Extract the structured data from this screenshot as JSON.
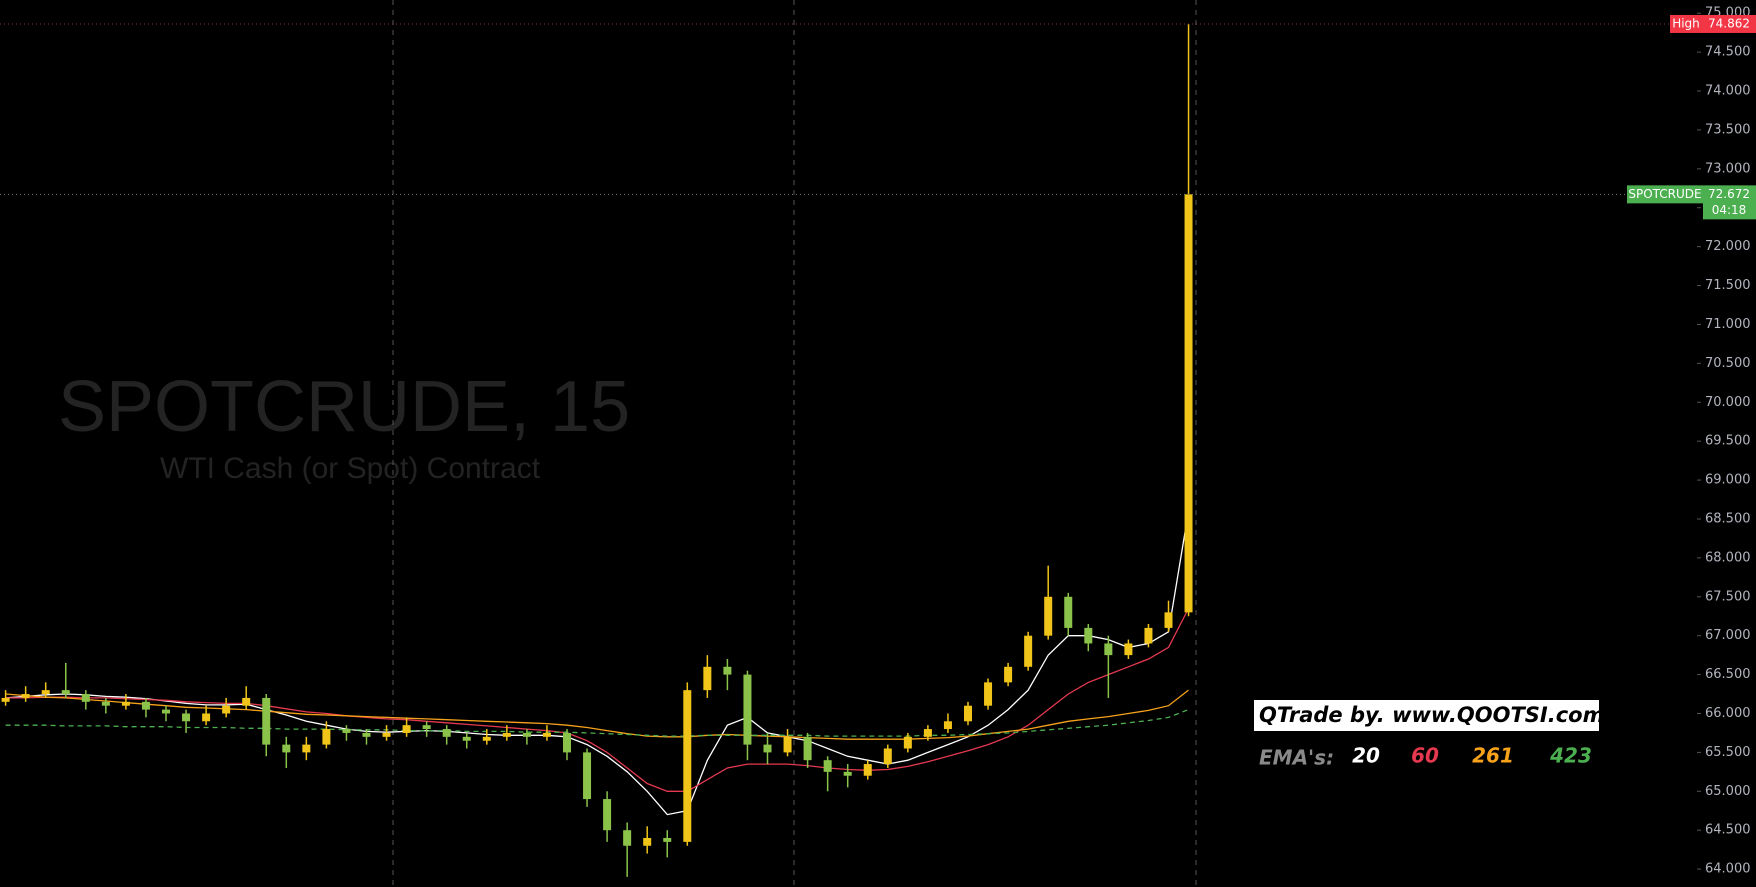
{
  "chart_data": {
    "type": "candlestick",
    "title": "SPOTCRUDE, 15",
    "subtitle": "WTI Cash (or Spot) Contract",
    "credit": "QTrade by. www.QOOTSI.com",
    "legend_label": "EMA's:",
    "up_color": "#f0c419",
    "down_color": "#8bc34a",
    "ylim": [
      63.77,
      75.17
    ],
    "yticks": [
      {
        "value": 64,
        "label": "64.000"
      },
      {
        "value": 64.5,
        "label": "64.500"
      },
      {
        "value": 65,
        "label": "65.000"
      },
      {
        "value": 65.5,
        "label": "65.500"
      },
      {
        "value": 66,
        "label": "66.000"
      },
      {
        "value": 66.5,
        "label": "66.500"
      },
      {
        "value": 67,
        "label": "67.000"
      },
      {
        "value": 67.5,
        "label": "67.500"
      },
      {
        "value": 68,
        "label": "68.000"
      },
      {
        "value": 68.5,
        "label": "68.500"
      },
      {
        "value": 69,
        "label": "69.000"
      },
      {
        "value": 69.5,
        "label": "69.500"
      },
      {
        "value": 70,
        "label": "70.000"
      },
      {
        "value": 70.5,
        "label": "70.500"
      },
      {
        "value": 71,
        "label": "71.000"
      },
      {
        "value": 71.5,
        "label": "71.500"
      },
      {
        "value": 72,
        "label": "72.000"
      },
      {
        "value": 72.5,
        "label": "72.500"
      },
      {
        "value": 73,
        "label": "73.000"
      },
      {
        "value": 73.5,
        "label": "73.500"
      },
      {
        "value": 74,
        "label": "74.000"
      },
      {
        "value": 74.5,
        "label": "74.500"
      },
      {
        "value": 75,
        "label": "75.000"
      }
    ],
    "high_marker": {
      "label": "High",
      "value": 74.862,
      "color": "#f23645"
    },
    "last_price": {
      "label": "SPOTCRUDE",
      "value": 72.672,
      "countdown": "04:18",
      "color": "#4caf50"
    },
    "candles": [
      [
        66.15,
        66.3,
        66.1,
        66.2
      ],
      [
        66.2,
        66.35,
        66.15,
        66.25
      ],
      [
        66.25,
        66.4,
        66.2,
        66.3
      ],
      [
        66.3,
        66.65,
        66.2,
        66.25
      ],
      [
        66.25,
        66.3,
        66.05,
        66.15
      ],
      [
        66.15,
        66.2,
        66.0,
        66.1
      ],
      [
        66.1,
        66.25,
        66.05,
        66.15
      ],
      [
        66.15,
        66.2,
        65.95,
        66.05
      ],
      [
        66.05,
        66.1,
        65.9,
        66.0
      ],
      [
        66.0,
        66.05,
        65.75,
        65.9
      ],
      [
        65.9,
        66.1,
        65.85,
        66.0
      ],
      [
        66.0,
        66.2,
        65.95,
        66.1
      ],
      [
        66.1,
        66.35,
        66.05,
        66.2
      ],
      [
        66.2,
        66.25,
        65.45,
        65.6
      ],
      [
        65.6,
        65.7,
        65.3,
        65.5
      ],
      [
        65.5,
        65.7,
        65.4,
        65.6
      ],
      [
        65.6,
        65.9,
        65.55,
        65.8
      ],
      [
        65.8,
        65.85,
        65.65,
        65.75
      ],
      [
        65.75,
        65.8,
        65.6,
        65.7
      ],
      [
        65.7,
        65.85,
        65.65,
        65.75
      ],
      [
        65.75,
        65.95,
        65.7,
        65.85
      ],
      [
        65.85,
        65.9,
        65.7,
        65.8
      ],
      [
        65.8,
        65.85,
        65.6,
        65.7
      ],
      [
        65.7,
        65.75,
        65.55,
        65.65
      ],
      [
        65.65,
        65.8,
        65.6,
        65.7
      ],
      [
        65.7,
        65.85,
        65.65,
        65.75
      ],
      [
        65.75,
        65.8,
        65.6,
        65.7
      ],
      [
        65.7,
        65.85,
        65.65,
        65.75
      ],
      [
        65.75,
        65.8,
        65.4,
        65.5
      ],
      [
        65.5,
        65.55,
        64.8,
        64.9
      ],
      [
        64.9,
        65.0,
        64.35,
        64.5
      ],
      [
        64.5,
        64.6,
        63.9,
        64.3
      ],
      [
        64.3,
        64.55,
        64.2,
        64.4
      ],
      [
        64.4,
        64.5,
        64.15,
        64.35
      ],
      [
        64.35,
        66.4,
        64.3,
        66.3
      ],
      [
        66.3,
        66.75,
        66.2,
        66.6
      ],
      [
        66.6,
        66.7,
        66.3,
        66.5
      ],
      [
        66.5,
        66.55,
        65.4,
        65.6
      ],
      [
        65.6,
        65.75,
        65.35,
        65.5
      ],
      [
        65.5,
        65.8,
        65.45,
        65.7
      ],
      [
        65.7,
        65.75,
        65.3,
        65.4
      ],
      [
        65.4,
        65.45,
        65.0,
        65.25
      ],
      [
        65.25,
        65.35,
        65.05,
        65.2
      ],
      [
        65.2,
        65.4,
        65.15,
        65.35
      ],
      [
        65.35,
        65.6,
        65.3,
        65.55
      ],
      [
        65.55,
        65.75,
        65.5,
        65.7
      ],
      [
        65.7,
        65.85,
        65.65,
        65.8
      ],
      [
        65.8,
        66.0,
        65.75,
        65.9
      ],
      [
        65.9,
        66.15,
        65.85,
        66.1
      ],
      [
        66.1,
        66.45,
        66.05,
        66.4
      ],
      [
        66.4,
        66.65,
        66.35,
        66.6
      ],
      [
        66.6,
        67.05,
        66.55,
        67.0
      ],
      [
        67.0,
        67.9,
        66.95,
        67.5
      ],
      [
        67.5,
        67.55,
        67.0,
        67.1
      ],
      [
        67.1,
        67.15,
        66.8,
        66.9
      ],
      [
        66.9,
        67.0,
        66.2,
        66.75
      ],
      [
        66.75,
        66.95,
        66.7,
        66.9
      ],
      [
        66.9,
        67.15,
        66.85,
        67.1
      ],
      [
        67.1,
        67.45,
        67.05,
        67.3
      ],
      [
        67.3,
        74.862,
        67.25,
        72.672
      ]
    ],
    "series": [
      {
        "name": "20",
        "color": "#ffffff",
        "dash": false,
        "values": [
          66.2,
          66.22,
          66.24,
          66.25,
          66.24,
          66.22,
          66.21,
          66.19,
          66.16,
          66.13,
          66.11,
          66.11,
          66.12,
          66.05,
          65.98,
          65.9,
          65.85,
          65.8,
          65.77,
          65.76,
          65.77,
          65.78,
          65.77,
          65.75,
          65.73,
          65.72,
          65.72,
          65.72,
          65.7,
          65.6,
          65.45,
          65.25,
          65.0,
          64.7,
          64.75,
          65.4,
          65.85,
          65.95,
          65.75,
          65.7,
          65.65,
          65.55,
          65.45,
          65.4,
          65.35,
          65.4,
          65.5,
          65.6,
          65.7,
          65.85,
          66.05,
          66.3,
          66.75,
          67.0,
          67.0,
          66.95,
          66.85,
          66.9,
          67.05,
          68.6
        ]
      },
      {
        "name": "60",
        "color": "#e53950",
        "dash": false,
        "values": [
          66.2,
          66.2,
          66.21,
          66.21,
          66.2,
          66.2,
          66.19,
          66.18,
          66.17,
          66.15,
          66.14,
          66.13,
          66.13,
          66.1,
          66.06,
          66.02,
          66.0,
          65.97,
          65.95,
          65.93,
          65.92,
          65.9,
          65.88,
          65.86,
          65.84,
          65.82,
          65.8,
          65.78,
          65.75,
          65.65,
          65.5,
          65.3,
          65.1,
          65.0,
          65.0,
          65.15,
          65.3,
          65.35,
          65.35,
          65.35,
          65.33,
          65.3,
          65.28,
          65.27,
          65.28,
          65.32,
          65.38,
          65.45,
          65.52,
          65.6,
          65.7,
          65.85,
          66.05,
          66.25,
          66.4,
          66.5,
          66.6,
          66.7,
          66.85,
          67.35
        ]
      },
      {
        "name": "261",
        "color": "#f7a21b",
        "dash": false,
        "values": [
          66.25,
          66.23,
          66.21,
          66.2,
          66.18,
          66.16,
          66.14,
          66.12,
          66.1,
          66.08,
          66.07,
          66.06,
          66.05,
          66.03,
          66.01,
          65.99,
          65.98,
          65.97,
          65.96,
          65.95,
          65.94,
          65.93,
          65.92,
          65.91,
          65.9,
          65.89,
          65.88,
          65.87,
          65.85,
          65.82,
          65.78,
          65.74,
          65.71,
          65.7,
          65.7,
          65.72,
          65.73,
          65.72,
          65.71,
          65.7,
          65.69,
          65.68,
          65.67,
          65.67,
          65.67,
          65.67,
          65.68,
          65.69,
          65.71,
          65.74,
          65.77,
          65.8,
          65.85,
          65.9,
          65.93,
          65.96,
          66.0,
          66.04,
          66.1,
          66.3
        ]
      },
      {
        "name": "423",
        "color": "#4caf50",
        "dash": true,
        "values": [
          65.85,
          65.85,
          65.85,
          65.84,
          65.84,
          65.84,
          65.83,
          65.83,
          65.83,
          65.82,
          65.82,
          65.82,
          65.81,
          65.81,
          65.8,
          65.8,
          65.8,
          65.79,
          65.79,
          65.79,
          65.78,
          65.78,
          65.78,
          65.77,
          65.77,
          65.77,
          65.76,
          65.76,
          65.76,
          65.75,
          65.74,
          65.73,
          65.72,
          65.71,
          65.71,
          65.72,
          65.72,
          65.72,
          65.72,
          65.72,
          65.72,
          65.71,
          65.71,
          65.71,
          65.71,
          65.71,
          65.72,
          65.72,
          65.73,
          65.74,
          65.75,
          65.77,
          65.79,
          65.81,
          65.83,
          65.85,
          65.88,
          65.91,
          65.95,
          66.05
        ]
      }
    ]
  }
}
